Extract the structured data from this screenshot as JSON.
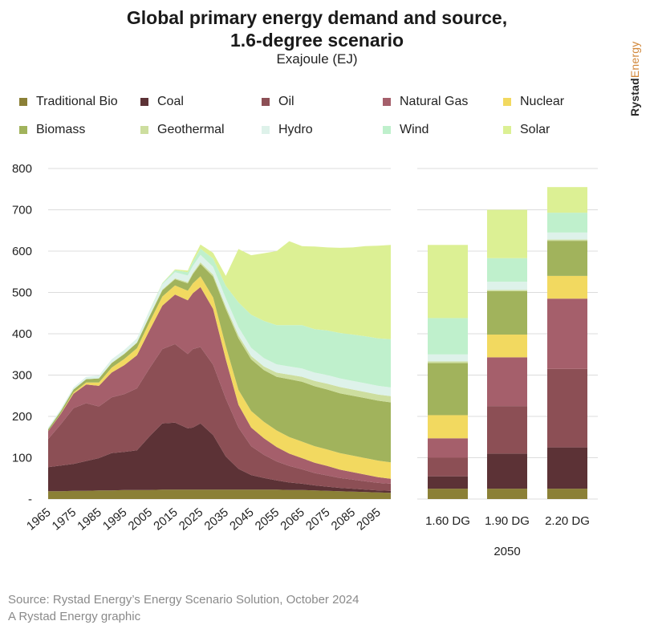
{
  "title_line1": "Global primary energy demand and source,",
  "title_line2": "1.6-degree scenario",
  "subtitle": "Exajoule (EJ)",
  "brand": {
    "part1": "Rystad",
    "part2": "Energy"
  },
  "footer": {
    "line1": "Source: Rystad Energy’s Energy Scenario Solution, October 2024",
    "line2": "A Rystad Energy graphic"
  },
  "chart_data": [
    {
      "type": "area",
      "stacked": true,
      "x_tick_labels": [
        "1965",
        "1975",
        "1985",
        "1995",
        "2005",
        "2015",
        "2025",
        "2035",
        "2045",
        "2055",
        "2065",
        "2075",
        "2085",
        "2095"
      ],
      "y_tick_labels": [
        "-",
        "100",
        "200",
        "300",
        "400",
        "500",
        "600",
        "700",
        "800"
      ],
      "ylim": [
        0,
        800
      ],
      "x": [
        1965,
        1970,
        1975,
        1980,
        1985,
        1990,
        1995,
        2000,
        2005,
        2010,
        2015,
        2020,
        2022,
        2025,
        2030,
        2035,
        2040,
        2045,
        2050,
        2055,
        2060,
        2065,
        2070,
        2075,
        2080,
        2085,
        2090,
        2095,
        2100
      ],
      "series": [
        {
          "name": "Traditional Bio",
          "color": "#8b8036",
          "values": [
            19,
            19,
            20,
            20,
            21,
            21,
            22,
            22,
            22,
            23,
            23,
            23,
            23,
            23,
            23,
            23,
            23,
            23,
            23,
            23,
            22,
            22,
            21,
            20,
            19,
            18,
            17,
            16,
            15
          ]
        },
        {
          "name": "Coal",
          "color": "#5c3236",
          "values": [
            58,
            62,
            65,
            72,
            78,
            90,
            92,
            96,
            130,
            160,
            162,
            148,
            150,
            160,
            132,
            80,
            50,
            35,
            28,
            22,
            18,
            15,
            12,
            10,
            8,
            7,
            6,
            5,
            5
          ]
        },
        {
          "name": "Oil",
          "color": "#8c4f55",
          "values": [
            68,
            100,
            135,
            140,
            125,
            135,
            140,
            150,
            165,
            180,
            190,
            180,
            190,
            185,
            170,
            140,
            100,
            70,
            56,
            46,
            40,
            35,
            30,
            27,
            24,
            22,
            20,
            18,
            17
          ]
        },
        {
          "name": "Natural Gas",
          "color": "#a55f6b",
          "values": [
            19,
            25,
            35,
            45,
            50,
            60,
            70,
            80,
            92,
            105,
            120,
            130,
            135,
            145,
            135,
            95,
            55,
            45,
            40,
            35,
            30,
            27,
            25,
            23,
            20,
            18,
            16,
            14,
            12
          ]
        },
        {
          "name": "Nuclear",
          "color": "#f2d960",
          "values": [
            0,
            1,
            3,
            5,
            8,
            12,
            15,
            17,
            20,
            22,
            22,
            23,
            24,
            26,
            28,
            32,
            36,
            40,
            40,
            40,
            40,
            40,
            40,
            40,
            40,
            40,
            40,
            40,
            40
          ]
        },
        {
          "name": "Biomass",
          "color": "#a1b35c",
          "values": [
            5,
            6,
            7,
            8,
            10,
            11,
            12,
            13,
            14,
            15,
            15,
            18,
            22,
            30,
            50,
            90,
            125,
            125,
            125,
            130,
            140,
            145,
            145,
            145,
            145,
            145,
            145,
            145,
            145
          ]
        },
        {
          "name": "Geothermal",
          "color": "#cdde9f",
          "values": [
            0,
            0,
            0,
            0,
            0,
            1,
            1,
            1,
            1,
            2,
            2,
            3,
            3,
            4,
            5,
            6,
            7,
            8,
            9,
            10,
            11,
            12,
            13,
            14,
            15,
            15,
            15,
            15,
            15
          ]
        },
        {
          "name": "Hydro",
          "color": "#def2ea",
          "values": [
            4,
            5,
            5,
            6,
            7,
            8,
            9,
            10,
            12,
            13,
            15,
            16,
            17,
            18,
            19,
            20,
            20,
            20,
            20,
            20,
            20,
            20,
            20,
            21,
            21,
            21,
            21,
            21,
            21
          ]
        },
        {
          "name": "Wind",
          "color": "#bff0cc",
          "values": [
            0,
            0,
            0,
            0,
            0,
            0,
            0,
            0,
            1,
            2,
            5,
            8,
            10,
            15,
            20,
            30,
            60,
            80,
            90,
            95,
            100,
            105,
            105,
            108,
            110,
            112,
            114,
            115,
            117
          ]
        },
        {
          "name": "Solar",
          "color": "#dcf094",
          "values": [
            0,
            0,
            0,
            0,
            0,
            0,
            0,
            0,
            0,
            1,
            2,
            4,
            6,
            10,
            14,
            24,
            129,
            144,
            164,
            179,
            203,
            191,
            200,
            201,
            206,
            211,
            218,
            224,
            228
          ]
        }
      ]
    },
    {
      "type": "bar",
      "stacked": true,
      "xlabel": "2050",
      "categories": [
        "1.60 DG",
        "1.90 DG",
        "2.20 DG"
      ],
      "ylim": [
        0,
        800
      ],
      "series": [
        {
          "name": "Traditional Bio",
          "values": [
            25,
            25,
            25
          ]
        },
        {
          "name": "Coal",
          "values": [
            30,
            85,
            100
          ]
        },
        {
          "name": "Oil",
          "values": [
            45,
            115,
            190
          ]
        },
        {
          "name": "Natural Gas",
          "values": [
            47,
            118,
            170
          ]
        },
        {
          "name": "Nuclear",
          "values": [
            56,
            55,
            55
          ]
        },
        {
          "name": "Biomass",
          "values": [
            126,
            105,
            85
          ]
        },
        {
          "name": "Geothermal",
          "values": [
            4,
            3,
            3
          ]
        },
        {
          "name": "Hydro",
          "values": [
            17,
            20,
            17
          ]
        },
        {
          "name": "Wind",
          "values": [
            88,
            57,
            48
          ]
        },
        {
          "name": "Solar",
          "values": [
            177,
            117,
            62
          ]
        }
      ]
    }
  ]
}
